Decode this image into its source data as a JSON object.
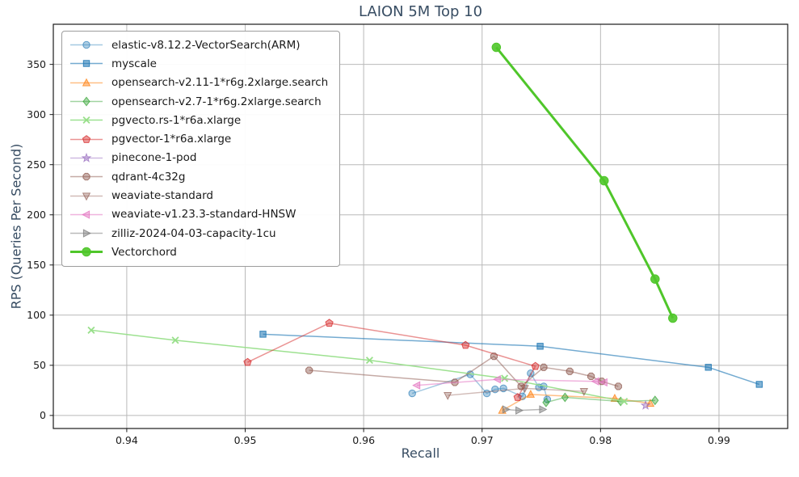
{
  "title": "LAION 5M Top 10",
  "chart_data": {
    "type": "line",
    "title": "LAION 5M Top 10",
    "xlabel": "Recall",
    "ylabel": "RPS (Queries Per Second)",
    "xlim": [
      0.9338,
      0.9958
    ],
    "ylim": [
      -13,
      390
    ],
    "xticks": [
      0.94,
      0.95,
      0.96,
      0.97,
      0.98,
      0.99
    ],
    "yticks": [
      0,
      50,
      100,
      150,
      200,
      250,
      300,
      350
    ],
    "grid": true,
    "legend_position": "upper-left",
    "series": [
      {
        "name": "elastic-v8.12.2-VectorSearch(ARM)",
        "marker": "circle",
        "color": "#1f77b4",
        "alpha": 0.4,
        "line_width": 1.5,
        "points": [
          [
            0.9641,
            22
          ],
          [
            0.969,
            41
          ],
          [
            0.9704,
            22
          ],
          [
            0.9711,
            26
          ],
          [
            0.9718,
            27
          ],
          [
            0.9734,
            19
          ],
          [
            0.9741,
            42
          ],
          [
            0.9748,
            28
          ],
          [
            0.9752,
            29
          ],
          [
            0.9755,
            16
          ]
        ]
      },
      {
        "name": "myscale",
        "marker": "square",
        "color": "#1f77b4",
        "alpha": 0.62,
        "line_width": 1.5,
        "points": [
          [
            0.9515,
            81
          ],
          [
            0.9749,
            69
          ],
          [
            0.9891,
            48
          ],
          [
            0.9934,
            31
          ]
        ]
      },
      {
        "name": "opensearch-v2.11-1*r6g.2xlarge.search",
        "marker": "triangle-up",
        "color": "#ff7f0e",
        "alpha": 0.5,
        "line_width": 1.5,
        "points": [
          [
            0.9717,
            5
          ],
          [
            0.9741,
            21
          ],
          [
            0.9812,
            17
          ],
          [
            0.9842,
            12
          ]
        ]
      },
      {
        "name": "opensearch-v2.7-1*r6g.2xlarge.search",
        "marker": "diamond",
        "color": "#2ca02c",
        "alpha": 0.45,
        "line_width": 1.5,
        "points": [
          [
            0.9754,
            13
          ],
          [
            0.977,
            18
          ],
          [
            0.9817,
            14
          ],
          [
            0.9846,
            15
          ]
        ]
      },
      {
        "name": "pgvecto.rs-1*r6a.xlarge",
        "marker": "x",
        "color": "#98df8a",
        "alpha": 0.95,
        "line_width": 1.5,
        "points": [
          [
            0.937,
            85
          ],
          [
            0.9441,
            75
          ],
          [
            0.9605,
            55
          ],
          [
            0.9719,
            37
          ],
          [
            0.982,
            14
          ]
        ]
      },
      {
        "name": "pgvector-1*r6a.xlarge",
        "marker": "pentagon",
        "color": "#d62728",
        "alpha": 0.5,
        "line_width": 1.5,
        "points": [
          [
            0.9502,
            53
          ],
          [
            0.9571,
            92
          ],
          [
            0.9686,
            70
          ],
          [
            0.9745,
            49
          ],
          [
            0.973,
            18
          ]
        ]
      },
      {
        "name": "pinecone-1-pod",
        "marker": "star",
        "color": "#9467bd",
        "alpha": 0.45,
        "line_width": 1.5,
        "points": [
          [
            0.9838,
            10
          ]
        ]
      },
      {
        "name": "qdrant-4c32g",
        "marker": "octagon",
        "color": "#8c564b",
        "alpha": 0.5,
        "line_width": 1.5,
        "points": [
          [
            0.9554,
            45
          ],
          [
            0.9677,
            33
          ],
          [
            0.971,
            59
          ],
          [
            0.9733,
            29
          ],
          [
            0.9752,
            48
          ],
          [
            0.9774,
            44
          ],
          [
            0.9792,
            39
          ],
          [
            0.9801,
            34
          ],
          [
            0.9815,
            29
          ]
        ]
      },
      {
        "name": "weaviate-standard",
        "marker": "triangle-down",
        "color": "#8c564b",
        "alpha": 0.4,
        "line_width": 1.5,
        "points": [
          [
            0.9671,
            20
          ],
          [
            0.9736,
            27
          ],
          [
            0.9786,
            24
          ]
        ]
      },
      {
        "name": "weaviate-v1.23.3-standard-HNSW",
        "marker": "triangle-left",
        "color": "#e377c2",
        "alpha": 0.55,
        "line_width": 1.5,
        "points": [
          [
            0.9645,
            30
          ],
          [
            0.9713,
            36
          ],
          [
            0.9796,
            34
          ],
          [
            0.9803,
            33
          ]
        ]
      },
      {
        "name": "zilliz-2024-04-03-capacity-1cu",
        "marker": "triangle-right",
        "color": "#7f7f7f",
        "alpha": 0.55,
        "line_width": 1.5,
        "points": [
          [
            0.972,
            6
          ],
          [
            0.9731,
            5
          ],
          [
            0.9751,
            6
          ]
        ]
      },
      {
        "name": "Vectorchord",
        "marker": "circle",
        "color": "#4fc62a",
        "alpha": 1.0,
        "line_width": 3,
        "points": [
          [
            0.9712,
            367
          ],
          [
            0.9803,
            234
          ],
          [
            0.9846,
            136
          ],
          [
            0.9861,
            97
          ]
        ]
      }
    ]
  },
  "style": {
    "grid_color": "#b9b9b9",
    "spine_color": "#1a1a1a",
    "tick_label_color": "#1a1a1a",
    "title_color": "#384d63"
  }
}
